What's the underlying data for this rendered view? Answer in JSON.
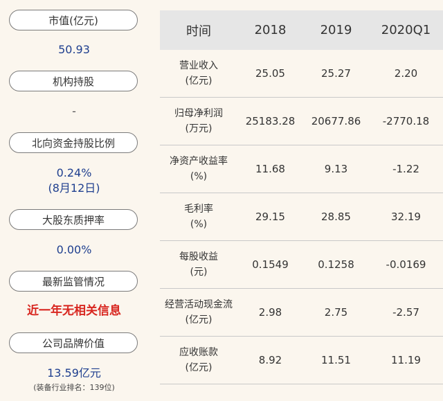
{
  "left_panel": {
    "market_cap": {
      "label": "市值(亿元)",
      "value": "50.93"
    },
    "institutional": {
      "label": "机构持股",
      "value": "-"
    },
    "northbound": {
      "label": "北向资金持股比例",
      "value": "0.24%",
      "date": "(8月12日)"
    },
    "pledge": {
      "label": "大股东质押率",
      "value": "0.00%"
    },
    "regulation": {
      "label": "最新监管情况",
      "value": "近一年无相关信息"
    },
    "brand": {
      "label": "公司品牌价值",
      "value": "13.59亿元",
      "note": "(装备行业排名：139位)"
    }
  },
  "table": {
    "headers": [
      "时间",
      "2018",
      "2019",
      "2020Q1"
    ],
    "rows": [
      {
        "label1": "营业收入",
        "label2": "(亿元)",
        "values": [
          "25.05",
          "25.27",
          "2.20"
        ]
      },
      {
        "label1": "归母净利润",
        "label2": "(万元)",
        "values": [
          "25183.28",
          "20677.86",
          "-2770.18"
        ]
      },
      {
        "label1": "净资产收益率",
        "label2": "(%)",
        "values": [
          "11.68",
          "9.13",
          "-1.22"
        ]
      },
      {
        "label1": "毛利率",
        "label2": "(%)",
        "values": [
          "29.15",
          "28.85",
          "32.19"
        ]
      },
      {
        "label1": "每股收益",
        "label2": "(元)",
        "values": [
          "0.1549",
          "0.1258",
          "-0.0169"
        ]
      },
      {
        "label1": "经营活动现金流",
        "label2": "(亿元)",
        "values": [
          "2.98",
          "2.75",
          "-2.57"
        ]
      },
      {
        "label1": "应收账款",
        "label2": "(亿元)",
        "values": [
          "8.92",
          "11.51",
          "11.19"
        ]
      }
    ]
  }
}
